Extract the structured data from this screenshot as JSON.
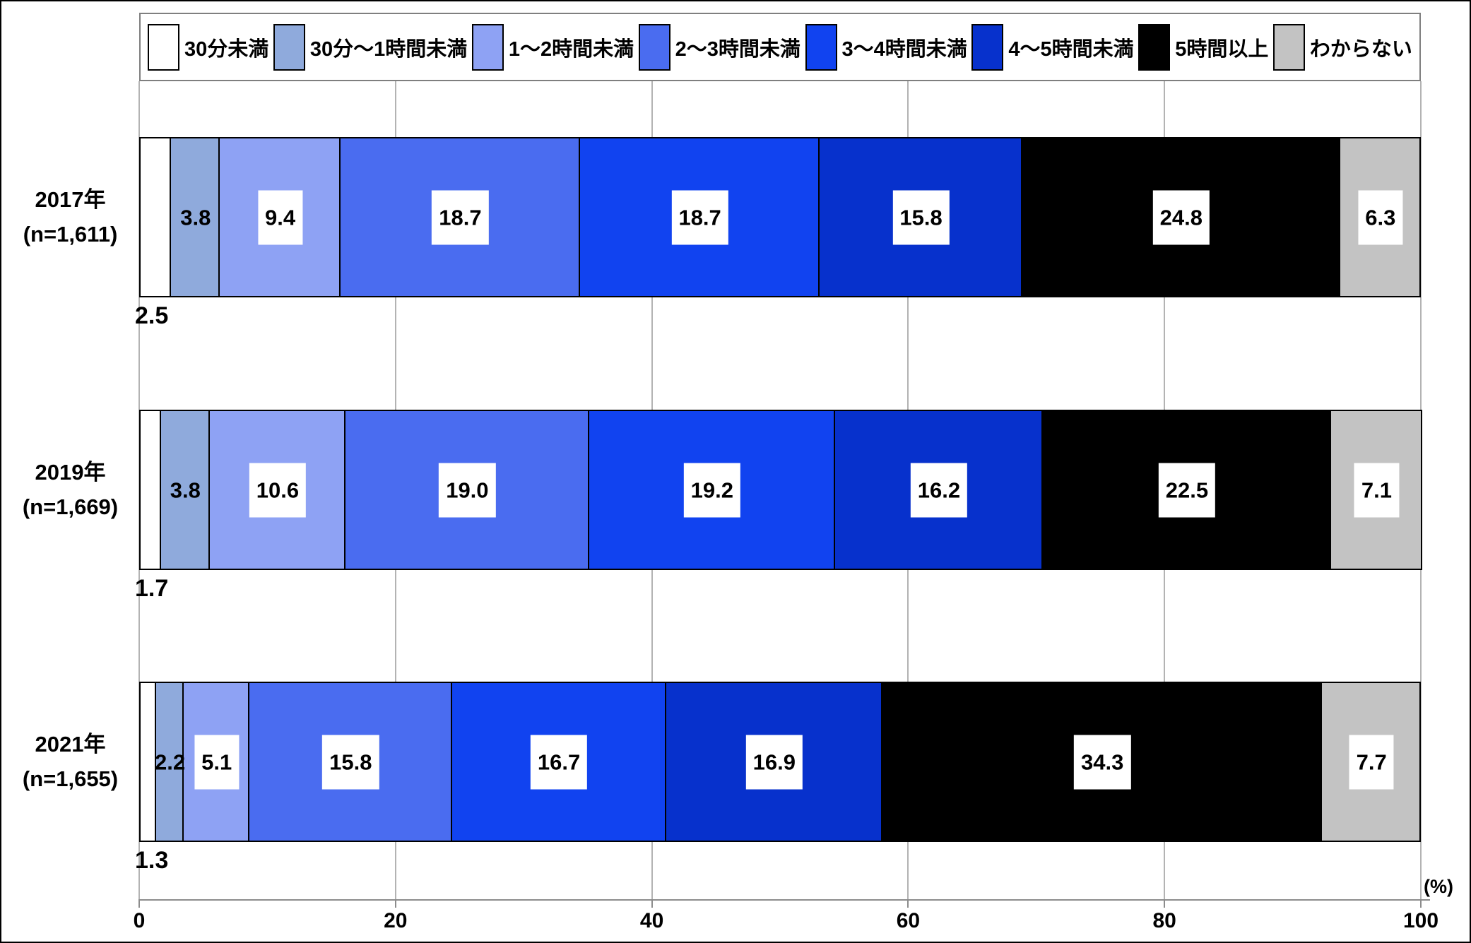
{
  "chart_data": {
    "type": "bar",
    "subtype": "horizontal-stacked",
    "title": "",
    "categories": [
      "30分未満",
      "30分〜1時間未満",
      "1〜2時間未満",
      "2〜3時間未満",
      "3〜4時間未満",
      "4〜5時間未満",
      "5時間以上",
      "わからない"
    ],
    "series_colors": [
      "#FFFFFF",
      "#8FAADC",
      "#8EA2F4",
      "#4A6CF0",
      "#1143F0",
      "#0731CC",
      "#000000",
      "#C3C3C3"
    ],
    "rows": [
      {
        "label": "2017年",
        "sublabel": "(n=1,611)",
        "values": [
          2.5,
          3.8,
          9.4,
          18.7,
          18.7,
          15.8,
          24.8,
          6.3
        ]
      },
      {
        "label": "2019年",
        "sublabel": "(n=1,669)",
        "values": [
          1.7,
          3.8,
          10.6,
          19.0,
          19.2,
          16.2,
          22.5,
          7.1
        ]
      },
      {
        "label": "2021年",
        "sublabel": "(n=1,655)",
        "values": [
          1.3,
          2.2,
          5.1,
          15.8,
          16.7,
          16.9,
          34.3,
          7.7
        ]
      }
    ],
    "x_axis": {
      "ticks": [
        0,
        20,
        40,
        60,
        80,
        100
      ],
      "range": [
        0,
        100
      ],
      "unit": "(%)"
    },
    "legend_position": "top",
    "grid": true,
    "label_style": {
      "first_value_below_bar": true,
      "no_box_segment_index": 1,
      "decimals": 1
    }
  }
}
